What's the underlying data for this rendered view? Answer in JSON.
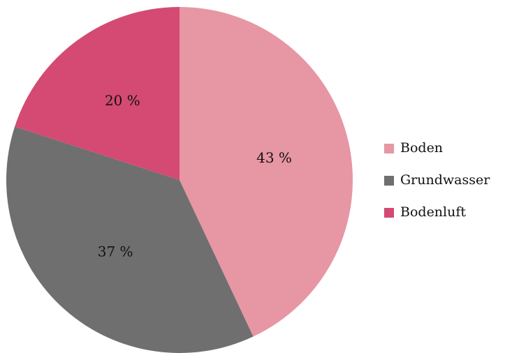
{
  "chart_data": {
    "type": "pie",
    "categories": [
      "Boden",
      "Grundwasser",
      "Bodenluft"
    ],
    "values": [
      43,
      37,
      20
    ],
    "value_labels": [
      "43 %",
      "37 %",
      "20 %"
    ],
    "colors": [
      "#e796a4",
      "#706f6f",
      "#d44a73"
    ],
    "legend": "right"
  }
}
